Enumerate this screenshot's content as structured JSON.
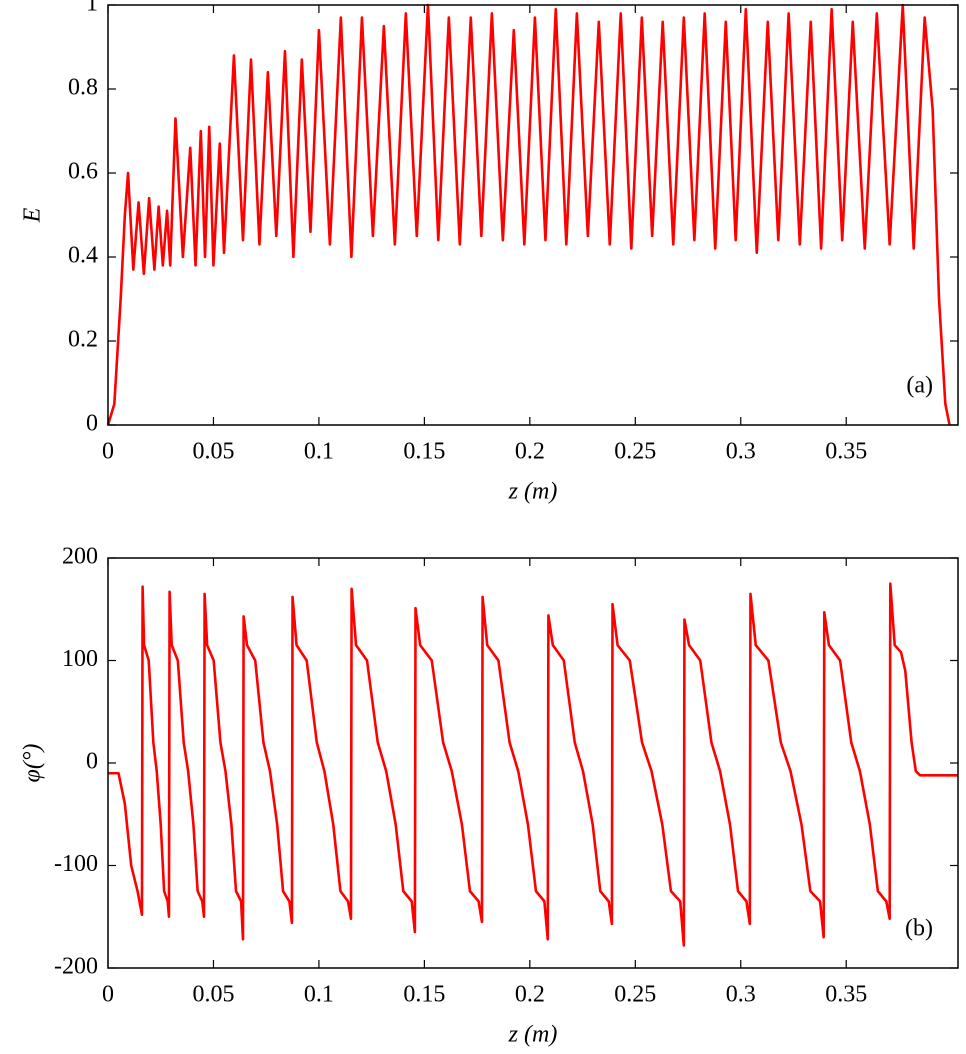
{
  "chart_data": [
    {
      "type": "line",
      "ylabel": "E",
      "xlabel": "z (m)",
      "annotation": "(a)",
      "color": "#ff0000",
      "xlim": [
        0,
        0.403
      ],
      "ylim": [
        0,
        1
      ],
      "xticks": [
        0,
        0.05,
        0.1,
        0.15,
        0.2,
        0.25,
        0.3,
        0.35
      ],
      "yticks": [
        0,
        0.2,
        0.4,
        0.6,
        0.8,
        1
      ],
      "x": [
        0,
        0.003,
        0.006,
        0.008,
        0.0095,
        0.012,
        0.0145,
        0.017,
        0.0195,
        0.022,
        0.024,
        0.026,
        0.028,
        0.0295,
        0.032,
        0.0355,
        0.039,
        0.0415,
        0.044,
        0.046,
        0.048,
        0.05,
        0.053,
        0.055,
        0.0597,
        0.064,
        0.0678,
        0.0718,
        0.0758,
        0.0798,
        0.0839,
        0.0879,
        0.0919,
        0.096,
        0.1,
        0.1052,
        0.1104,
        0.1154,
        0.1204,
        0.1256,
        0.1308,
        0.136,
        0.1412,
        0.1464,
        0.1517,
        0.1566,
        0.1616,
        0.1668,
        0.172,
        0.177,
        0.182,
        0.1872,
        0.1924,
        0.1974,
        0.2024,
        0.2074,
        0.2123,
        0.2173,
        0.2223,
        0.2275,
        0.2327,
        0.2379,
        0.2431,
        0.2481,
        0.2531,
        0.258,
        0.263,
        0.268,
        0.273,
        0.278,
        0.2829,
        0.2879,
        0.2929,
        0.2976,
        0.3024,
        0.3076,
        0.3128,
        0.3178,
        0.3227,
        0.328,
        0.3332,
        0.3381,
        0.3431,
        0.3481,
        0.3531,
        0.3588,
        0.3645,
        0.3706,
        0.3768,
        0.382,
        0.3872,
        0.391,
        0.394,
        0.397,
        0.399
      ],
      "values": [
        0,
        0.05,
        0.3,
        0.5,
        0.6,
        0.37,
        0.53,
        0.36,
        0.54,
        0.37,
        0.52,
        0.38,
        0.51,
        0.38,
        0.73,
        0.4,
        0.66,
        0.38,
        0.7,
        0.4,
        0.71,
        0.38,
        0.67,
        0.41,
        0.88,
        0.44,
        0.87,
        0.43,
        0.84,
        0.45,
        0.89,
        0.4,
        0.87,
        0.46,
        0.94,
        0.43,
        0.97,
        0.4,
        0.97,
        0.45,
        0.95,
        0.43,
        0.98,
        0.45,
        1,
        0.44,
        0.97,
        0.43,
        0.97,
        0.45,
        0.98,
        0.44,
        0.94,
        0.43,
        0.97,
        0.44,
        0.99,
        0.43,
        0.98,
        0.45,
        0.96,
        0.43,
        0.98,
        0.42,
        0.97,
        0.45,
        0.96,
        0.43,
        0.97,
        0.44,
        0.98,
        0.42,
        0.96,
        0.44,
        0.99,
        0.41,
        0.96,
        0.44,
        0.98,
        0.43,
        0.96,
        0.42,
        0.99,
        0.44,
        0.96,
        0.42,
        0.98,
        0.43,
        1,
        0.42,
        0.97,
        0.75,
        0.3,
        0.05,
        0
      ]
    },
    {
      "type": "line",
      "ylabel": "φ(°)",
      "xlabel": "z (m)",
      "annotation": "(b)",
      "color": "#ff0000",
      "xlim": [
        0,
        0.403
      ],
      "ylim": [
        -200,
        200
      ],
      "xticks": [
        0,
        0.05,
        0.1,
        0.15,
        0.2,
        0.25,
        0.3,
        0.35
      ],
      "yticks": [
        -200,
        -100,
        0,
        100,
        200
      ],
      "x": [
        0,
        0.005,
        0.008,
        0.011,
        0.014,
        0.0161,
        0.0164,
        0.0171,
        0.0193,
        0.0215,
        0.0231,
        0.025,
        0.0266,
        0.0283,
        0.0289,
        0.0292,
        0.0302,
        0.0331,
        0.0359,
        0.038,
        0.0405,
        0.0425,
        0.0447,
        0.0455,
        0.0458,
        0.047,
        0.0501,
        0.0533,
        0.0557,
        0.0585,
        0.0607,
        0.0631,
        0.064,
        0.0643,
        0.0659,
        0.0698,
        0.0737,
        0.0768,
        0.0802,
        0.083,
        0.086,
        0.0872,
        0.0875,
        0.0894,
        0.0942,
        0.099,
        0.1026,
        0.1068,
        0.1102,
        0.1138,
        0.1152,
        0.1155,
        0.1176,
        0.1228,
        0.1279,
        0.1319,
        0.1364,
        0.14,
        0.144,
        0.1455,
        0.1458,
        0.148,
        0.1535,
        0.1589,
        0.163,
        0.1678,
        0.1716,
        0.1757,
        0.1773,
        0.1776,
        0.1798,
        0.1851,
        0.1904,
        0.1945,
        0.1991,
        0.2029,
        0.2069,
        0.2085,
        0.2088,
        0.2109,
        0.2161,
        0.2213,
        0.2252,
        0.2298,
        0.2334,
        0.2374,
        0.2389,
        0.2392,
        0.2416,
        0.2474,
        0.2532,
        0.2577,
        0.2628,
        0.2669,
        0.2713,
        0.273,
        0.2733,
        0.2755,
        0.2808,
        0.2861,
        0.2902,
        0.2949,
        0.2987,
        0.3027,
        0.3043,
        0.3046,
        0.3071,
        0.3131,
        0.319,
        0.3236,
        0.3288,
        0.333,
        0.3376,
        0.3393,
        0.3396,
        0.3418,
        0.3471,
        0.3524,
        0.3565,
        0.3612,
        0.365,
        0.369,
        0.3706,
        0.3709,
        0.373,
        0.376,
        0.378,
        0.381,
        0.383,
        0.385,
        0.403
      ],
      "values": [
        -10,
        -10,
        -40,
        -100,
        -125,
        -148,
        172,
        115,
        100,
        20,
        -8,
        -60,
        -125,
        -135,
        -150,
        167,
        115,
        100,
        20,
        -8,
        -60,
        -125,
        -135,
        -150,
        165,
        115,
        100,
        20,
        -8,
        -60,
        -125,
        -135,
        -172,
        143,
        115,
        100,
        20,
        -8,
        -60,
        -125,
        -135,
        -156,
        162,
        115,
        100,
        20,
        -8,
        -60,
        -125,
        -135,
        -152,
        170,
        115,
        100,
        20,
        -8,
        -60,
        -125,
        -135,
        -165,
        151,
        115,
        100,
        20,
        -8,
        -60,
        -125,
        -135,
        -155,
        162,
        115,
        100,
        20,
        -8,
        -60,
        -125,
        -135,
        -172,
        144,
        115,
        100,
        20,
        -8,
        -60,
        -125,
        -135,
        -157,
        155,
        115,
        100,
        20,
        -8,
        -60,
        -125,
        -135,
        -178,
        140,
        115,
        100,
        20,
        -8,
        -60,
        -125,
        -135,
        -157,
        165,
        115,
        100,
        20,
        -8,
        -60,
        -125,
        -135,
        -170,
        147,
        115,
        100,
        20,
        -8,
        -60,
        -125,
        -135,
        -152,
        175,
        115,
        108,
        90,
        20,
        -8,
        -12,
        -12
      ]
    }
  ]
}
